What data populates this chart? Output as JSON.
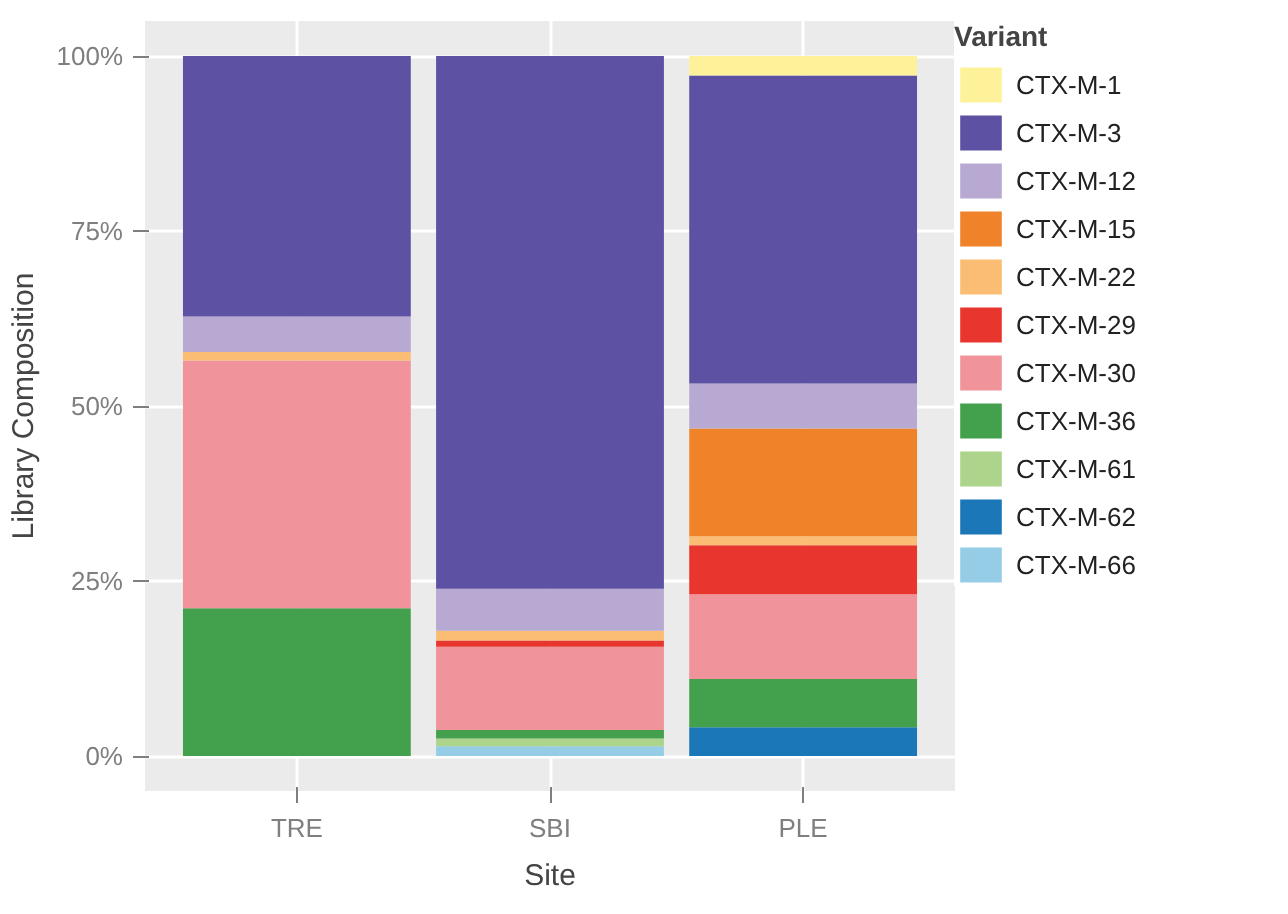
{
  "chart_data": {
    "type": "bar",
    "stacked": true,
    "xlabel": "Site",
    "ylabel": "Library Composition",
    "legend_title": "Variant",
    "legend": "right",
    "categories": [
      "TRE",
      "SBI",
      "PLE"
    ],
    "ylim": [
      -5,
      105
    ],
    "yticks": [
      {
        "value": 0,
        "label": "0%"
      },
      {
        "value": 25,
        "label": "25%"
      },
      {
        "value": 50,
        "label": "50%"
      },
      {
        "value": 75,
        "label": "75%"
      },
      {
        "value": 100,
        "label": "100%"
      }
    ],
    "grid": true,
    "series": [
      {
        "name": "CTX-M-66",
        "color": "#95cde6",
        "values": [
          null,
          1.4,
          null
        ]
      },
      {
        "name": "CTX-M-62",
        "color": "#1c77b8",
        "values": [
          null,
          null,
          4.1
        ]
      },
      {
        "name": "CTX-M-61",
        "color": "#acd48a",
        "values": [
          null,
          1.1,
          null
        ]
      },
      {
        "name": "CTX-M-36",
        "color": "#43a04c",
        "values": [
          21.1,
          1.2,
          6.9
        ]
      },
      {
        "name": "CTX-M-30",
        "color": "#f0939a",
        "values": [
          35.4,
          11.9,
          12.1
        ]
      },
      {
        "name": "CTX-M-29",
        "color": "#e8352d",
        "values": [
          null,
          0.9,
          7.0
        ]
      },
      {
        "name": "CTX-M-22",
        "color": "#fbbd73",
        "values": [
          1.2,
          1.4,
          1.3
        ]
      },
      {
        "name": "CTX-M-15",
        "color": "#f0832a",
        "values": [
          null,
          null,
          15.4
        ]
      },
      {
        "name": "CTX-M-12",
        "color": "#b8a9d3",
        "values": [
          5.1,
          6.0,
          6.4
        ]
      },
      {
        "name": "CTX-M-3",
        "color": "#5c51a2",
        "values": [
          37.2,
          76.1,
          44.0
        ]
      },
      {
        "name": "CTX-M-1",
        "color": "#fdf29a",
        "values": [
          null,
          null,
          2.8
        ]
      }
    ]
  }
}
